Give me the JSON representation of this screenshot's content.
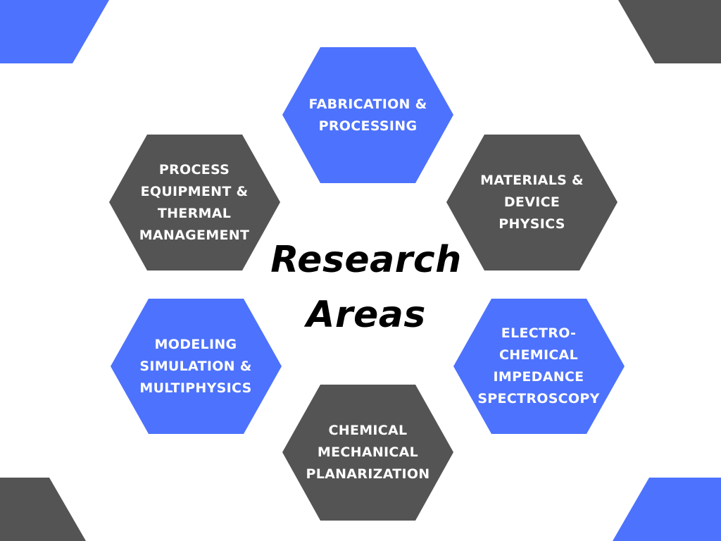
{
  "title": "Research\nAreas",
  "colors": {
    "blue": "#4d72fd",
    "gray": "#545454",
    "text": "#ffffff",
    "title": "#000000"
  },
  "hexagons": [
    {
      "id": "fabrication",
      "label": "FABRICATION &\nPROCESSING",
      "color": "blue"
    },
    {
      "id": "materials",
      "label": "MATERIALS &\nDEVICE\nPHYSICS",
      "color": "gray"
    },
    {
      "id": "electrochemical",
      "label": "ELECTRO-\nCHEMICAL\nIMPEDANCE\nSPECTROSCOPY",
      "color": "blue"
    },
    {
      "id": "cmp",
      "label": "CHEMICAL\nMECHANICAL\nPLANARIZATION",
      "color": "gray"
    },
    {
      "id": "modeling",
      "label": "MODELING\nSIMULATION &\nMULTIPHYSICS",
      "color": "blue"
    },
    {
      "id": "process-equipment",
      "label": "PROCESS\nEQUIPMENT &\nTHERMAL\nMANAGEMENT",
      "color": "gray"
    }
  ]
}
